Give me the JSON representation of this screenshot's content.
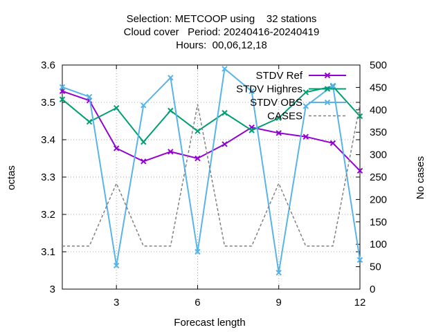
{
  "chart_data": {
    "type": "line",
    "title": [
      "Selection: METCOOP using    32 stations",
      "Cloud cover   Period: 20240416-20240419",
      "Hours:  00,06,12,18"
    ],
    "xlabel": "Forecast length",
    "ylabel": "octas",
    "y2label": "No cases",
    "xlim": [
      1,
      12
    ],
    "ylim": [
      3.0,
      3.6
    ],
    "y2lim": [
      0,
      500
    ],
    "x_ticks": [
      3,
      6,
      9,
      12
    ],
    "y_ticks": [
      3,
      3.1,
      3.2,
      3.3,
      3.4,
      3.5,
      3.6
    ],
    "y_tick_labels": [
      "3",
      "3.1",
      "3.2",
      "3.3",
      "3.4",
      "3.5",
      "3.6"
    ],
    "y2_ticks": [
      0,
      50,
      100,
      150,
      200,
      250,
      300,
      350,
      400,
      450,
      500
    ],
    "grid": true,
    "legend_position": "top-right",
    "x": [
      1,
      2,
      3,
      4,
      5,
      6,
      7,
      8,
      9,
      10,
      11,
      12
    ],
    "series": [
      {
        "name": "STDV Ref",
        "axis": "left",
        "color": "#9400d3",
        "style": "solid",
        "marker": "x",
        "values": [
          3.53,
          3.505,
          3.377,
          3.342,
          3.368,
          3.35,
          3.388,
          3.433,
          3.418,
          3.408,
          3.391,
          3.317
        ]
      },
      {
        "name": "STDV Highres",
        "axis": "left",
        "color": "#009e73",
        "style": "solid",
        "marker": "x",
        "values": [
          3.508,
          3.448,
          3.485,
          3.394,
          3.478,
          3.423,
          3.472,
          3.425,
          3.458,
          3.527,
          3.543,
          3.463
        ]
      },
      {
        "name": "STDV OBS",
        "axis": "left",
        "color": "#56b4e9",
        "style": "solid",
        "marker": "x",
        "values": [
          3.541,
          3.515,
          3.063,
          3.492,
          3.566,
          3.1,
          3.59,
          3.53,
          3.044,
          3.49,
          3.545,
          3.078
        ]
      },
      {
        "name": "CASES",
        "axis": "right",
        "color": "#808080",
        "style": "dashed",
        "marker": "none",
        "values": [
          96,
          96,
          236,
          96,
          96,
          412,
          96,
          96,
          236,
          96,
          96,
          412
        ]
      }
    ]
  }
}
